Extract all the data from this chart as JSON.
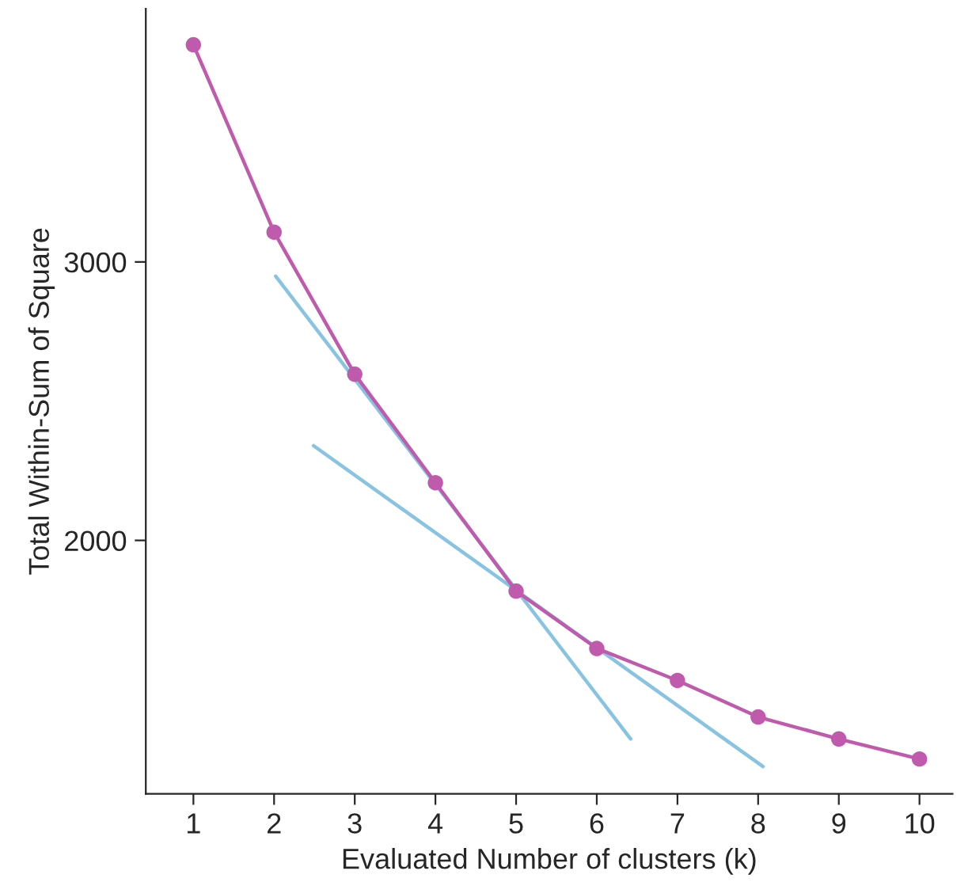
{
  "chart_data": {
    "type": "line",
    "xlabel": "Evaluated Number of clusters (k)",
    "ylabel": "Total Within-Sum of Square",
    "x": [
      1,
      2,
      3,
      4,
      5,
      6,
      7,
      8,
      9,
      10
    ],
    "series": [
      {
        "color": "#c05aad",
        "marker": "circle",
        "values": [
          3780,
          3107,
          2597,
          2207,
          1818,
          1612,
          1497,
          1366,
          1287,
          1215
        ]
      },
      {
        "color": "#88c4e2",
        "marker": "none",
        "x": [
          2.02,
          6.42
        ],
        "values": [
          2949,
          1287
        ]
      },
      {
        "color": "#88c4e2",
        "marker": "none",
        "x": [
          2.49,
          8.06
        ],
        "values": [
          2340,
          1188
        ]
      }
    ],
    "xlim": [
      0.41,
      10.41
    ],
    "xticks": [
      1,
      2,
      3,
      4,
      5,
      6,
      7,
      8,
      9,
      10
    ],
    "ylim": [
      1090,
      3909
    ],
    "yticks": [
      2000,
      3000
    ],
    "grid": false,
    "legend": false
  }
}
